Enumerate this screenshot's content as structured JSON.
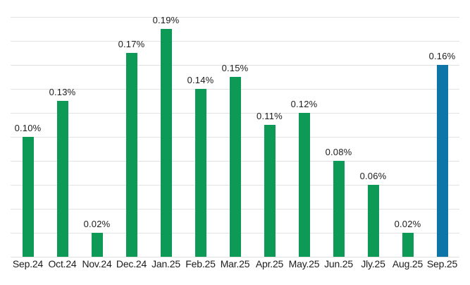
{
  "chart_data": {
    "type": "bar",
    "categories": [
      "Sep.24",
      "Oct.24",
      "Nov.24",
      "Dec.24",
      "Jan.25",
      "Feb.25",
      "Mar.25",
      "Apr.25",
      "May.25",
      "Jun.25",
      "Jly.25",
      "Aug.25",
      "Sep.25"
    ],
    "values": [
      0.1,
      0.13,
      0.02,
      0.17,
      0.19,
      0.14,
      0.15,
      0.11,
      0.12,
      0.08,
      0.06,
      0.02,
      0.16
    ],
    "value_labels": [
      "0.10%",
      "0.13%",
      "0.02%",
      "0.17%",
      "0.19%",
      "0.14%",
      "0.15%",
      "0.11%",
      "0.12%",
      "0.08%",
      "0.06%",
      "0.02%",
      "0.16%"
    ],
    "title": "",
    "xlabel": "",
    "ylabel": "",
    "ylim": [
      0,
      0.2
    ],
    "gridline_step": 0.02,
    "grid": true,
    "legend": false,
    "y_axis_labels_visible": false,
    "highlight_index": 12,
    "colors": {
      "bar_default": "#0d9a56",
      "bar_highlight": "#0e75a8",
      "gridline": "#e2e2e2",
      "label_text": "#1c1c1c",
      "background": "#ffffff"
    }
  }
}
